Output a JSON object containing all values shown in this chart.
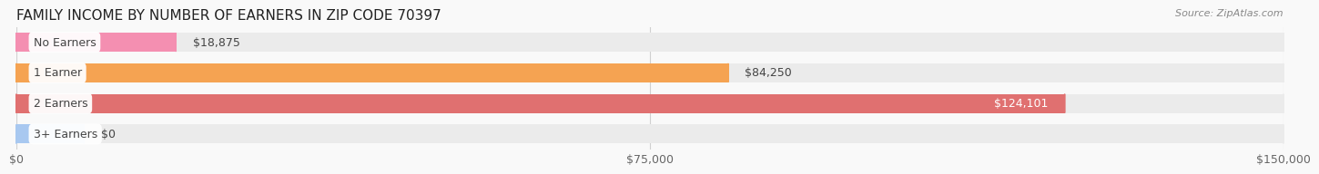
{
  "title": "FAMILY INCOME BY NUMBER OF EARNERS IN ZIP CODE 70397",
  "source": "Source: ZipAtlas.com",
  "categories": [
    "No Earners",
    "1 Earner",
    "2 Earners",
    "3+ Earners"
  ],
  "values": [
    18875,
    84250,
    124101,
    0
  ],
  "bar_colors": [
    "#f48fb1",
    "#f5a352",
    "#e07070",
    "#a8c8f0"
  ],
  "bar_bg_colors": [
    "#f5f5f5",
    "#faf6f0",
    "#faf0f0",
    "#f0f4f8"
  ],
  "value_label_inside": [
    false,
    false,
    true,
    false
  ],
  "xlim": [
    0,
    150000
  ],
  "xticks": [
    0,
    75000,
    150000
  ],
  "xtick_labels": [
    "$0",
    "$75,000",
    "$150,000"
  ],
  "bar_height": 0.62,
  "bg_bar_color": "#ebebeb",
  "background_color": "#f9f9f9",
  "title_fontsize": 11,
  "label_fontsize": 9,
  "value_fontsize": 9,
  "axis_fontsize": 9,
  "grid_color": "#d0d0d0"
}
